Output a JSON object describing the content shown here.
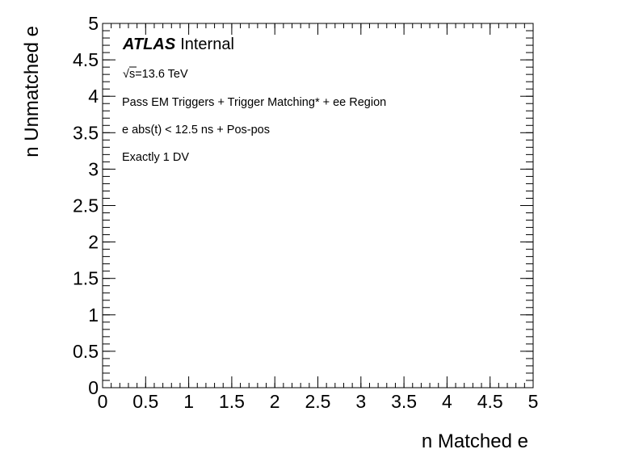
{
  "chart_data": {
    "type": "heatmap",
    "title": "",
    "xlabel": "n Matched e",
    "ylabel": "n Unmatched e",
    "xlim": [
      0,
      5
    ],
    "ylim": [
      0,
      5
    ],
    "xticks": [
      "0",
      "0.5",
      "1",
      "1.5",
      "2",
      "2.5",
      "3",
      "3.5",
      "4",
      "4.5",
      "5"
    ],
    "yticks": [
      "0",
      "0.5",
      "1",
      "1.5",
      "2",
      "2.5",
      "3",
      "3.5",
      "4",
      "4.5",
      "5"
    ],
    "values": [],
    "grid": false,
    "annotations": {
      "atlas_label": "ATLAS",
      "atlas_status": "Internal",
      "sqrt_symbol": "√",
      "energy": "s=13.6 TeV",
      "selection": "Pass EM Triggers + Trigger Matching* + ee Region",
      "cut": "e abs(t) < 12.5 ns + Pos-pos",
      "category": "Exactly 1 DV"
    }
  }
}
